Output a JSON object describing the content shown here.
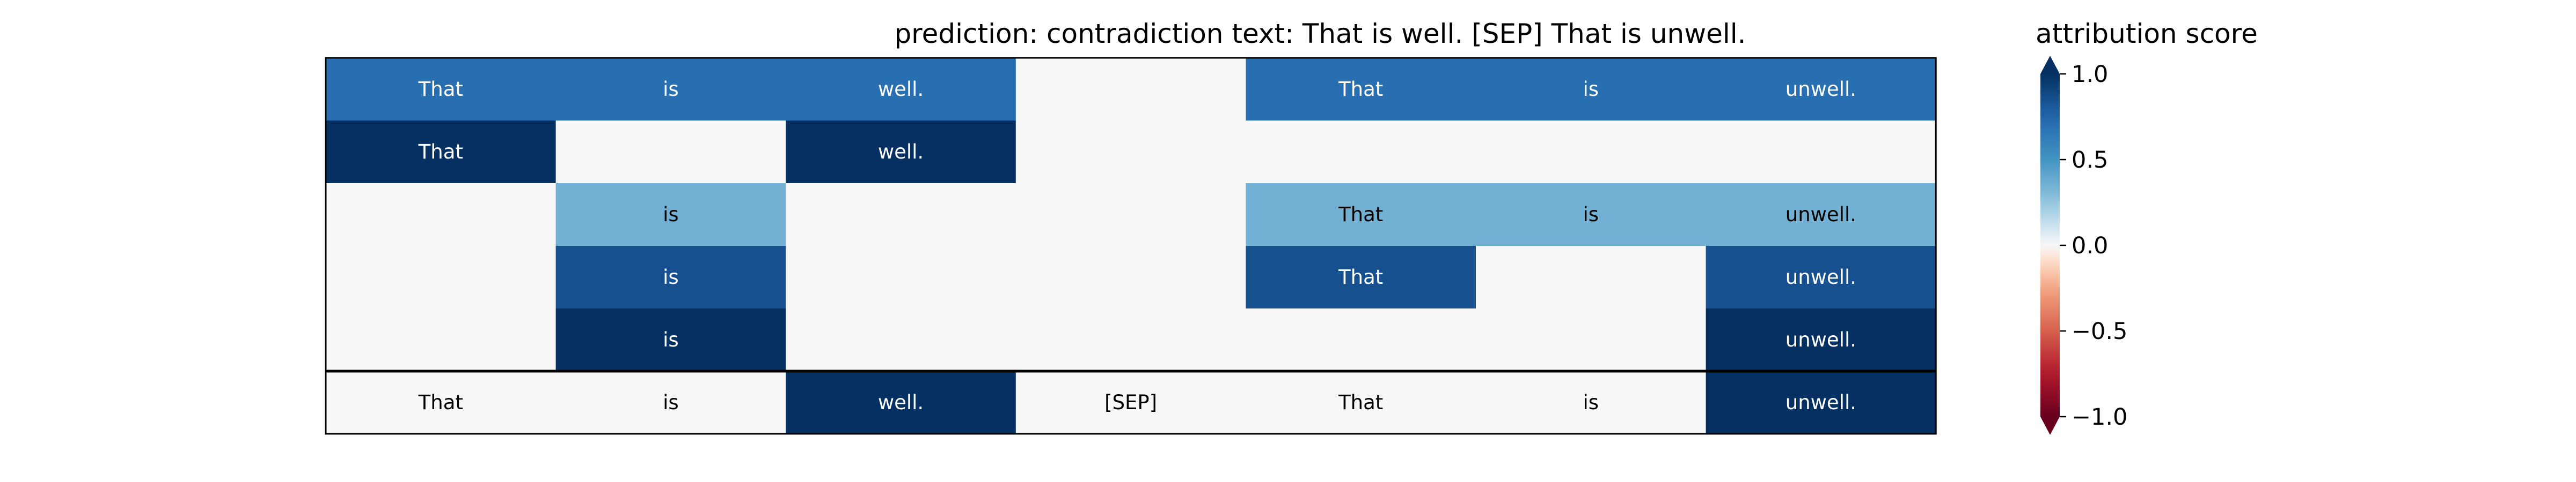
{
  "title": "prediction:  contradiction     text:  That is well. [SEP] That is unwell.",
  "chart_data": {
    "type": "heatmap",
    "title": "prediction:  contradiction     text:  That is well. [SEP] That is unwell.",
    "columns": [
      "That",
      "is",
      "well.",
      "[SEP]",
      "That",
      "is",
      "unwell."
    ],
    "rows": [
      {
        "tokens": [
          "That",
          "is",
          "well.",
          "",
          "That",
          "is",
          "unwell."
        ],
        "values": [
          0.7,
          0.7,
          0.7,
          0.0,
          0.7,
          0.7,
          0.7
        ]
      },
      {
        "tokens": [
          "That",
          "",
          "well.",
          "",
          "",
          "",
          ""
        ],
        "values": [
          1.0,
          0.0,
          1.0,
          0.0,
          0.0,
          0.0,
          0.0
        ]
      },
      {
        "tokens": [
          "",
          "is",
          "",
          "",
          "That",
          "is",
          "unwell."
        ],
        "values": [
          0.0,
          0.35,
          0.0,
          0.0,
          0.35,
          0.35,
          0.35
        ]
      },
      {
        "tokens": [
          "",
          "is",
          "",
          "",
          "That",
          "",
          "unwell."
        ],
        "values": [
          0.0,
          0.85,
          0.0,
          0.0,
          0.85,
          0.0,
          0.85
        ]
      },
      {
        "tokens": [
          "",
          "is",
          "",
          "",
          "",
          "",
          "unwell."
        ],
        "values": [
          0.0,
          1.0,
          0.0,
          0.0,
          0.0,
          0.0,
          1.0
        ]
      }
    ],
    "summary_row": {
      "tokens": [
        "That",
        "is",
        "well.",
        "[SEP]",
        "That",
        "is",
        "unwell."
      ],
      "values": [
        0.0,
        0.0,
        1.0,
        0.0,
        0.0,
        0.0,
        1.0
      ]
    },
    "colorbar": {
      "label": "attribution score",
      "range": [
        -1.0,
        1.0
      ],
      "ticks": [
        1.0,
        0.5,
        0.0,
        -0.5,
        -1.0
      ],
      "tick_labels": [
        "1.0",
        "0.5",
        "0.0",
        "−0.5",
        "−1.0"
      ],
      "colormap": "RdBu",
      "extend": "both"
    }
  }
}
